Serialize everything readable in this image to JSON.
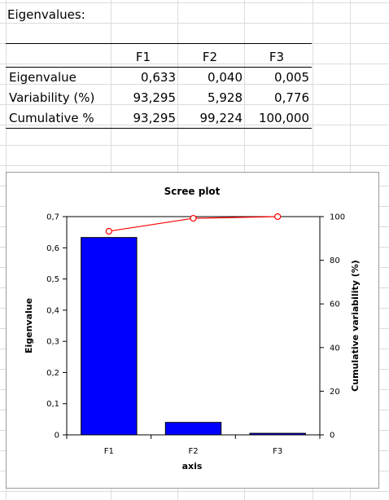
{
  "sheet": {
    "title": "Eigenvalues:",
    "table": {
      "columns": [
        "F1",
        "F2",
        "F3"
      ],
      "rows": [
        {
          "label": "Eigenvalue",
          "values": [
            "0,633",
            "0,040",
            "0,005"
          ]
        },
        {
          "label": "Variability (%)",
          "values": [
            "93,295",
            "5,928",
            "0,776"
          ]
        },
        {
          "label": "Cumulative %",
          "values": [
            "93,295",
            "99,224",
            "100,000"
          ]
        }
      ]
    }
  },
  "chart_data": {
    "type": "bar",
    "title": "Scree plot",
    "xlabel": "axis",
    "ylabel": "Eigenvalue",
    "y2label": "Cumulative variability (%)",
    "categories": [
      "F1",
      "F2",
      "F3"
    ],
    "series": [
      {
        "type": "bar",
        "values": [
          0.633,
          0.04,
          0.005
        ],
        "color": "#0000ff"
      },
      {
        "type": "line",
        "axis": "right",
        "values": [
          93.295,
          99.224,
          100.0
        ],
        "color": "#ff0000"
      }
    ],
    "ylim": [
      0,
      0.7
    ],
    "yticks": [
      "0",
      "0,1",
      "0,2",
      "0,3",
      "0,4",
      "0,5",
      "0,6",
      "0,7"
    ],
    "y2lim": [
      0,
      100
    ],
    "y2ticks": [
      "0",
      "20",
      "40",
      "60",
      "80",
      "100"
    ],
    "grid": false,
    "legend": "none"
  }
}
